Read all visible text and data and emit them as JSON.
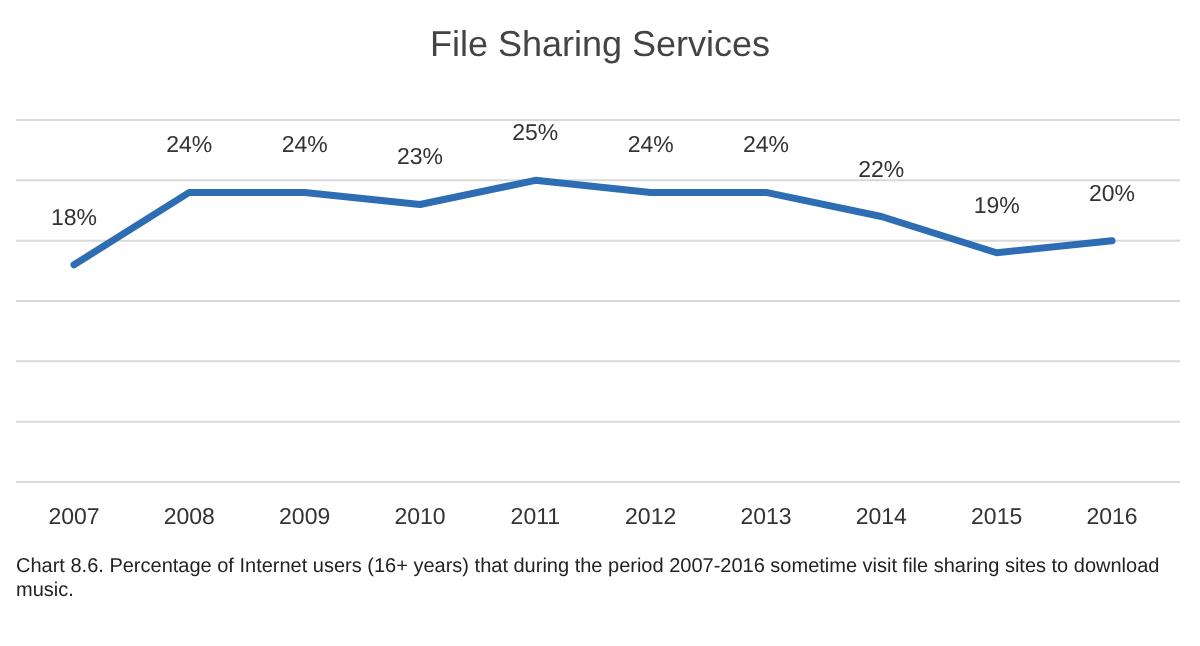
{
  "chart_data": {
    "type": "line",
    "title": "File Sharing Services",
    "categories": [
      "2007",
      "2008",
      "2009",
      "2010",
      "2011",
      "2012",
      "2013",
      "2014",
      "2015",
      "2016"
    ],
    "series": [
      {
        "color": "#2e6db4",
        "values": [
          18,
          24,
          24,
          23,
          25,
          24,
          24,
          22,
          19,
          20
        ],
        "value_labels": [
          "18%",
          "24%",
          "24%",
          "23%",
          "25%",
          "24%",
          "24%",
          "22%",
          "19%",
          "20%"
        ]
      }
    ],
    "ylim": [
      0,
      30
    ],
    "yticks": [
      {
        "value": 0,
        "label": null
      },
      {
        "value": 5,
        "label": null
      },
      {
        "value": 10,
        "label": null
      },
      {
        "value": 15,
        "label": null
      },
      {
        "value": 20,
        "label": null
      },
      {
        "value": 25,
        "label": null
      },
      {
        "value": 30,
        "label": null
      }
    ],
    "tick_labels": "x",
    "grid": "y",
    "marker": "none",
    "line_style": "solid",
    "annotations": [
      "Chart 8.6. Percentage of Internet users (16+ years) that during the period 2007-2016 sometime visit file sharing sites to download music."
    ]
  }
}
